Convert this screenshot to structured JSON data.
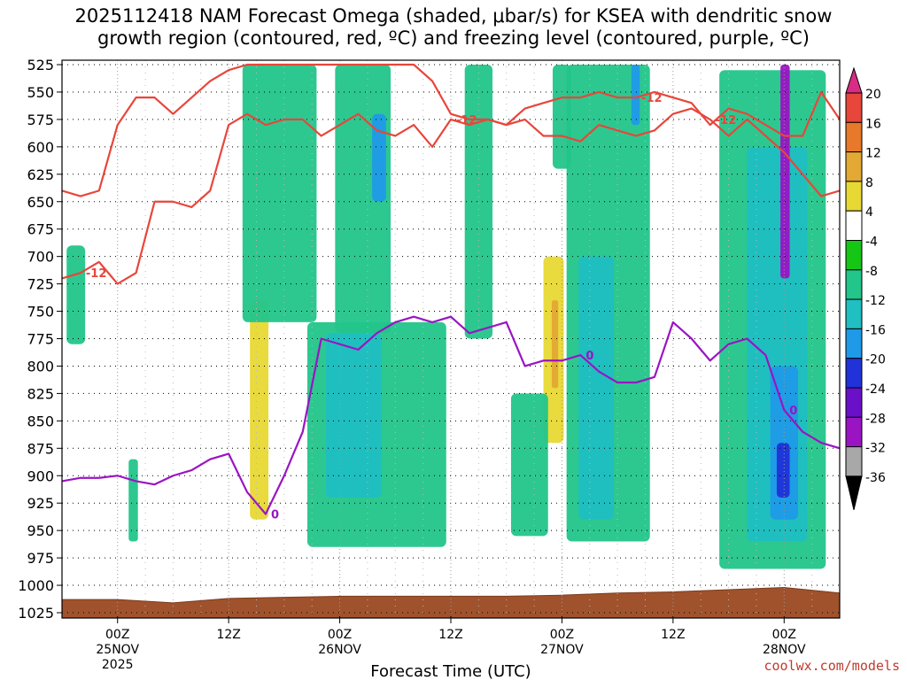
{
  "title_line1": "2025112418 NAM Forecast Omega (shaded, μbar/s) for KSEA with dendritic snow",
  "title_line2": "growth region (contoured, red, ºC) and freezing level (contoured, purple, ºC)",
  "credit": "coolwx.com/models",
  "chart_data": {
    "type": "heatmap",
    "xlabel": "Forecast Time (UTC)",
    "ylabel": "",
    "x_ticks": [
      {
        "hour": 6,
        "lines": [
          "00Z",
          "25NOV",
          "2025"
        ]
      },
      {
        "hour": 18,
        "lines": [
          "12Z"
        ]
      },
      {
        "hour": 30,
        "lines": [
          "00Z",
          "26NOV"
        ]
      },
      {
        "hour": 42,
        "lines": [
          "12Z"
        ]
      },
      {
        "hour": 54,
        "lines": [
          "00Z",
          "27NOV"
        ]
      },
      {
        "hour": 66,
        "lines": [
          "12Z"
        ]
      },
      {
        "hour": 78,
        "lines": [
          "00Z",
          "28NOV"
        ]
      }
    ],
    "xlim": [
      0,
      84
    ],
    "y_ticks": [
      525,
      550,
      575,
      600,
      625,
      650,
      675,
      700,
      725,
      750,
      775,
      800,
      825,
      850,
      875,
      900,
      925,
      950,
      975,
      1000,
      1025
    ],
    "ylim": [
      525,
      1025
    ],
    "grid": true,
    "colorbar": {
      "labels": [
        "20",
        "16",
        "12",
        "8",
        "4",
        "-4",
        "-8",
        "-12",
        "-16",
        "-20",
        "-24",
        "-28",
        "-32",
        "-36"
      ],
      "colors": [
        "#d92c84",
        "#e8463a",
        "#e8782a",
        "#e3a934",
        "#e8d834",
        "#ffffff",
        "#15c615",
        "#22c58a",
        "#1fbfc2",
        "#1f9ae8",
        "#2032d8",
        "#6a10c8",
        "#9a14c4",
        "#a8a8a8",
        "#000000"
      ]
    },
    "contour_label_dgz": "-12",
    "contour_label_fz": "0",
    "dgz_upper": {
      "hours": [
        0,
        2,
        4,
        6,
        8,
        10,
        12,
        14,
        16,
        18,
        20,
        22,
        24,
        26,
        28,
        30,
        32,
        34,
        36,
        38,
        40,
        42,
        44,
        46,
        48,
        50,
        52,
        54,
        56,
        58,
        60,
        62,
        64,
        66,
        68,
        70,
        72,
        74,
        76,
        78,
        80,
        82,
        84
      ],
      "hpa": [
        640,
        645,
        640,
        580,
        555,
        555,
        570,
        555,
        540,
        530,
        525,
        525,
        525,
        525,
        525,
        525,
        525,
        525,
        525,
        525,
        540,
        570,
        575,
        575,
        580,
        565,
        560,
        555,
        555,
        550,
        555,
        555,
        550,
        555,
        560,
        580,
        565,
        570,
        580,
        590,
        590,
        550,
        575
      ]
    },
    "dgz_lower": {
      "hours": [
        0,
        2,
        4,
        6,
        8,
        10,
        12,
        14,
        16,
        18,
        20,
        22,
        24,
        26,
        28,
        30,
        32,
        34,
        36,
        38,
        40,
        42,
        44,
        46,
        48,
        50,
        52,
        54,
        56,
        58,
        60,
        62,
        64,
        66,
        68,
        70,
        72,
        74,
        76,
        78,
        80,
        82,
        84
      ],
      "hpa": [
        720,
        715,
        705,
        725,
        715,
        650,
        650,
        655,
        640,
        580,
        570,
        580,
        575,
        575,
        590,
        580,
        570,
        585,
        590,
        580,
        600,
        575,
        580,
        575,
        580,
        575,
        590,
        590,
        595,
        580,
        585,
        590,
        585,
        570,
        565,
        575,
        590,
        575,
        590,
        605,
        625,
        645,
        640
      ]
    },
    "freezing_level": {
      "hours": [
        0,
        2,
        4,
        6,
        8,
        10,
        12,
        14,
        16,
        18,
        20,
        22,
        24,
        26,
        28,
        30,
        32,
        34,
        36,
        38,
        40,
        42,
        44,
        46,
        48,
        50,
        52,
        54,
        56,
        58,
        60,
        62,
        64,
        66,
        68,
        70,
        72,
        74,
        76,
        78,
        80,
        82,
        84
      ],
      "hpa": [
        905,
        902,
        902,
        900,
        905,
        908,
        900,
        895,
        885,
        880,
        915,
        935,
        900,
        860,
        775,
        780,
        785,
        770,
        760,
        755,
        760,
        755,
        770,
        765,
        760,
        800,
        795,
        795,
        790,
        805,
        815,
        815,
        810,
        760,
        775,
        795,
        780,
        775,
        790,
        840,
        860,
        870,
        875
      ]
    },
    "omega_regions": [
      {
        "value": -8,
        "hours": [
          0.5,
          2.5
        ],
        "hpa": [
          690,
          780
        ]
      },
      {
        "value": -8,
        "hours": [
          7.2,
          8.2
        ],
        "hpa": [
          885,
          960
        ]
      },
      {
        "value": 4,
        "hours": [
          20.3,
          22.3
        ],
        "hpa": [
          740,
          940
        ]
      },
      {
        "value": -8,
        "hours": [
          19.5,
          27.5
        ],
        "hpa": [
          525,
          760
        ]
      },
      {
        "value": -8,
        "hours": [
          26.5,
          41.5
        ],
        "hpa": [
          760,
          965
        ]
      },
      {
        "value": -8,
        "hours": [
          29.5,
          35.5
        ],
        "hpa": [
          525,
          770
        ]
      },
      {
        "value": -12,
        "hours": [
          28.5,
          34.5
        ],
        "hpa": [
          770,
          920
        ]
      },
      {
        "value": -16,
        "hours": [
          33.5,
          35.0
        ],
        "hpa": [
          570,
          650
        ]
      },
      {
        "value": -8,
        "hours": [
          43.5,
          46.5
        ],
        "hpa": [
          525,
          775
        ]
      },
      {
        "value": 4,
        "hours": [
          52.0,
          54.2
        ],
        "hpa": [
          700,
          870
        ]
      },
      {
        "value": 8,
        "hours": [
          52.9,
          53.6
        ],
        "hpa": [
          740,
          820
        ]
      },
      {
        "value": -8,
        "hours": [
          48.5,
          52.5
        ],
        "hpa": [
          825,
          955
        ]
      },
      {
        "value": -8,
        "hours": [
          53.0,
          55.0
        ],
        "hpa": [
          525,
          620
        ]
      },
      {
        "value": -8,
        "hours": [
          54.5,
          63.5
        ],
        "hpa": [
          525,
          960
        ]
      },
      {
        "value": -12,
        "hours": [
          55.8,
          59.6
        ],
        "hpa": [
          700,
          940
        ]
      },
      {
        "value": -16,
        "hours": [
          61.5,
          62.4
        ],
        "hpa": [
          525,
          580
        ]
      },
      {
        "value": -8,
        "hours": [
          71.0,
          82.5
        ],
        "hpa": [
          530,
          985
        ]
      },
      {
        "value": -12,
        "hours": [
          74.0,
          80.5
        ],
        "hpa": [
          600,
          960
        ]
      },
      {
        "value": -16,
        "hours": [
          76.5,
          79.5
        ],
        "hpa": [
          800,
          940
        ]
      },
      {
        "value": -20,
        "hours": [
          77.2,
          78.6
        ],
        "hpa": [
          870,
          920
        ]
      },
      {
        "value": -28,
        "hours": [
          77.6,
          78.6
        ],
        "hpa": [
          525,
          720
        ]
      }
    ],
    "terrain": {
      "hours": [
        0,
        6,
        12,
        18,
        24,
        30,
        36,
        42,
        48,
        54,
        60,
        66,
        72,
        78,
        84
      ],
      "hpa": [
        1013,
        1013,
        1016,
        1012,
        1011,
        1010,
        1010,
        1010,
        1010,
        1009,
        1007,
        1006,
        1004,
        1002,
        1007
      ]
    }
  }
}
